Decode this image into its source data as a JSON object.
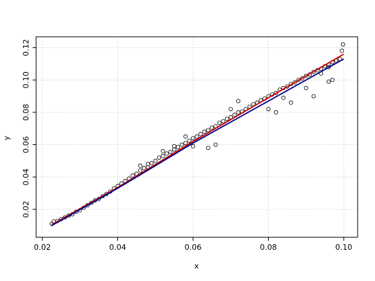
{
  "chart_data": {
    "type": "scatter",
    "xlabel": "x",
    "ylabel": "y",
    "xlim": [
      0.02,
      0.1
    ],
    "ylim": [
      0.007,
      0.125
    ],
    "x_ticks": [
      0.02,
      0.04,
      0.06,
      0.08,
      0.1
    ],
    "x_tick_labels": [
      "0.02",
      "0.04",
      "0.06",
      "0.08",
      "0.10"
    ],
    "y_ticks": [
      0.02,
      0.04,
      0.06,
      0.08,
      0.1,
      0.12
    ],
    "y_tick_labels": [
      "0.02",
      "0.04",
      "0.06",
      "0.08",
      "0.10",
      "0.12"
    ],
    "grid": true,
    "grid_style": "dotted",
    "point_style": "open-circle",
    "colors": {
      "points": "#000000",
      "fit_red": "#cc0000",
      "fit_blue": "#00008b",
      "grid": "#c8c8c8"
    },
    "points_sample": [
      [
        0.0225,
        0.011
      ],
      [
        0.023,
        0.0125
      ],
      [
        0.024,
        0.0128
      ],
      [
        0.025,
        0.014
      ],
      [
        0.026,
        0.015
      ],
      [
        0.027,
        0.0162
      ],
      [
        0.028,
        0.017
      ],
      [
        0.029,
        0.0185
      ],
      [
        0.03,
        0.0195
      ],
      [
        0.031,
        0.021
      ],
      [
        0.032,
        0.0225
      ],
      [
        0.033,
        0.024
      ],
      [
        0.034,
        0.0255
      ],
      [
        0.035,
        0.0265
      ],
      [
        0.036,
        0.0282
      ],
      [
        0.037,
        0.0295
      ],
      [
        0.038,
        0.031
      ],
      [
        0.039,
        0.033
      ],
      [
        0.04,
        0.0345
      ],
      [
        0.041,
        0.036
      ],
      [
        0.042,
        0.0375
      ],
      [
        0.043,
        0.039
      ],
      [
        0.044,
        0.041
      ],
      [
        0.045,
        0.042
      ],
      [
        0.046,
        0.044
      ],
      [
        0.047,
        0.0455
      ],
      [
        0.048,
        0.048
      ],
      [
        0.049,
        0.0485
      ],
      [
        0.05,
        0.05
      ],
      [
        0.051,
        0.052
      ],
      [
        0.052,
        0.053
      ],
      [
        0.053,
        0.0545
      ],
      [
        0.054,
        0.0555
      ],
      [
        0.055,
        0.057
      ],
      [
        0.056,
        0.0585
      ],
      [
        0.057,
        0.06
      ],
      [
        0.058,
        0.061
      ],
      [
        0.059,
        0.0625
      ],
      [
        0.06,
        0.064
      ],
      [
        0.061,
        0.065
      ],
      [
        0.062,
        0.0665
      ],
      [
        0.063,
        0.068
      ],
      [
        0.064,
        0.069
      ],
      [
        0.065,
        0.0705
      ],
      [
        0.066,
        0.0715
      ],
      [
        0.067,
        0.0735
      ],
      [
        0.068,
        0.0745
      ],
      [
        0.069,
        0.076
      ],
      [
        0.07,
        0.077
      ],
      [
        0.071,
        0.0785
      ],
      [
        0.072,
        0.08
      ],
      [
        0.073,
        0.0805
      ],
      [
        0.074,
        0.082
      ],
      [
        0.075,
        0.0835
      ],
      [
        0.076,
        0.085
      ],
      [
        0.077,
        0.086
      ],
      [
        0.078,
        0.0875
      ],
      [
        0.079,
        0.0885
      ],
      [
        0.08,
        0.09
      ],
      [
        0.081,
        0.091
      ],
      [
        0.082,
        0.092
      ],
      [
        0.083,
        0.094
      ],
      [
        0.084,
        0.095
      ],
      [
        0.085,
        0.096
      ],
      [
        0.086,
        0.0975
      ],
      [
        0.087,
        0.0985
      ],
      [
        0.088,
        0.1
      ],
      [
        0.089,
        0.101
      ],
      [
        0.09,
        0.1025
      ],
      [
        0.091,
        0.1035
      ],
      [
        0.092,
        0.105
      ],
      [
        0.093,
        0.106
      ],
      [
        0.094,
        0.107
      ],
      [
        0.095,
        0.1085
      ],
      [
        0.096,
        0.1095
      ],
      [
        0.097,
        0.111
      ],
      [
        0.098,
        0.112
      ],
      [
        0.099,
        0.113
      ],
      [
        0.0995,
        0.118
      ],
      [
        0.0998,
        0.122
      ],
      [
        0.064,
        0.058
      ],
      [
        0.066,
        0.06
      ],
      [
        0.07,
        0.082
      ],
      [
        0.072,
        0.087
      ],
      [
        0.08,
        0.082
      ],
      [
        0.082,
        0.08
      ],
      [
        0.084,
        0.089
      ],
      [
        0.086,
        0.086
      ],
      [
        0.09,
        0.095
      ],
      [
        0.092,
        0.09
      ],
      [
        0.094,
        0.104
      ],
      [
        0.096,
        0.108
      ],
      [
        0.097,
        0.1
      ],
      [
        0.096,
        0.099
      ],
      [
        0.055,
        0.059
      ],
      [
        0.052,
        0.056
      ],
      [
        0.058,
        0.065
      ],
      [
        0.06,
        0.059
      ],
      [
        0.048,
        0.046
      ],
      [
        0.046,
        0.047
      ]
    ],
    "fit_lines": [
      {
        "color": "red",
        "x": [
          0.0225,
          0.04,
          0.06,
          0.08,
          0.1
        ],
        "y": [
          0.0105,
          0.0335,
          0.062,
          0.089,
          0.116
        ]
      },
      {
        "color": "blue",
        "x": [
          0.0225,
          0.04,
          0.06,
          0.08,
          0.1
        ],
        "y": [
          0.01,
          0.033,
          0.061,
          0.087,
          0.113
        ]
      }
    ]
  }
}
